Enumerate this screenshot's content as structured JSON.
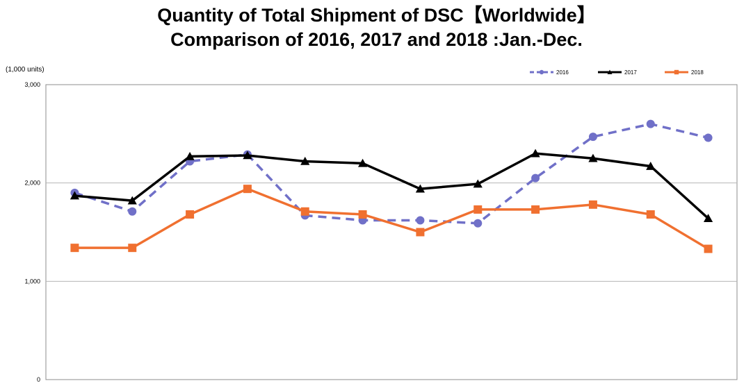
{
  "title_line1": "Quantity of Total Shipment of DSC【Worldwide】",
  "title_line2": "Comparison of 2016, 2017 and 2018 :Jan.-Dec.",
  "chart_data": {
    "type": "line",
    "title": "Quantity of Total Shipment of DSC【Worldwide】 Comparison of 2016, 2017 and 2018 :Jan.-Dec.",
    "ylabel": "(1,000 units)",
    "xlabel": "",
    "ylim": [
      0,
      3000
    ],
    "yticks": [
      0,
      1000,
      2000,
      3000
    ],
    "ytick_labels": [
      "0",
      "1,000",
      "2,000",
      "3,000"
    ],
    "grid": "horizontal",
    "legend_position": "top-right",
    "series": [
      {
        "name": "2016",
        "color": "#7070c8",
        "style": "dashed",
        "marker": "circle",
        "values": [
          1900,
          1710,
          2220,
          2290,
          1670,
          1620,
          1620,
          1590,
          2050,
          2470,
          2600,
          2460
        ]
      },
      {
        "name": "2017",
        "color": "#000000",
        "style": "solid",
        "marker": "triangle",
        "values": [
          1870,
          1820,
          2270,
          2280,
          2220,
          2200,
          1940,
          1990,
          2300,
          2250,
          2170,
          1640
        ]
      },
      {
        "name": "2018",
        "color": "#f07030",
        "style": "solid",
        "marker": "square",
        "values": [
          1340,
          1340,
          1680,
          1940,
          1710,
          1680,
          1500,
          1730,
          1730,
          1780,
          1680,
          1330
        ]
      }
    ]
  }
}
